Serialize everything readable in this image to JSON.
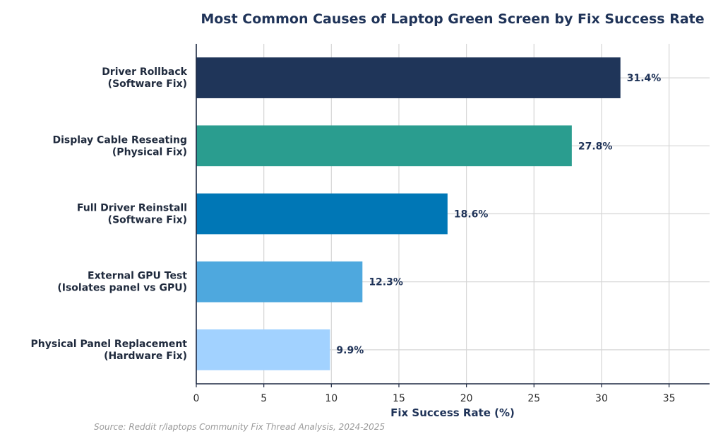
{
  "chart_data": {
    "type": "bar",
    "orientation": "horizontal",
    "title": "Most Common Causes of Laptop Green Screen by Fix Success Rate",
    "xlabel": "Fix Success Rate (%)",
    "ylabel": "",
    "xlim": [
      0,
      38
    ],
    "xticks": [
      "0",
      "5",
      "10",
      "15",
      "20",
      "25",
      "30",
      "35"
    ],
    "grid": true,
    "categories": [
      [
        "Driver Rollback",
        "(Software Fix)"
      ],
      [
        "Display Cable Reseating",
        "(Physical Fix)"
      ],
      [
        "Full Driver Reinstall",
        "(Software Fix)"
      ],
      [
        "External GPU Test",
        "(Isolates panel vs GPU)"
      ],
      [
        "Physical Panel Replacement",
        "(Hardware Fix)"
      ]
    ],
    "values": [
      31.4,
      27.8,
      18.6,
      12.3,
      9.9
    ],
    "value_labels": [
      "31.4%",
      "27.8%",
      "18.6%",
      "12.3%",
      "9.9%"
    ],
    "colors": [
      "#1f3559",
      "#2a9d8f",
      "#0077b6",
      "#4ea8de",
      "#a2d2ff"
    ],
    "source": "Source: Reddit r/laptops Community Fix Thread Analysis, 2024-2025"
  }
}
